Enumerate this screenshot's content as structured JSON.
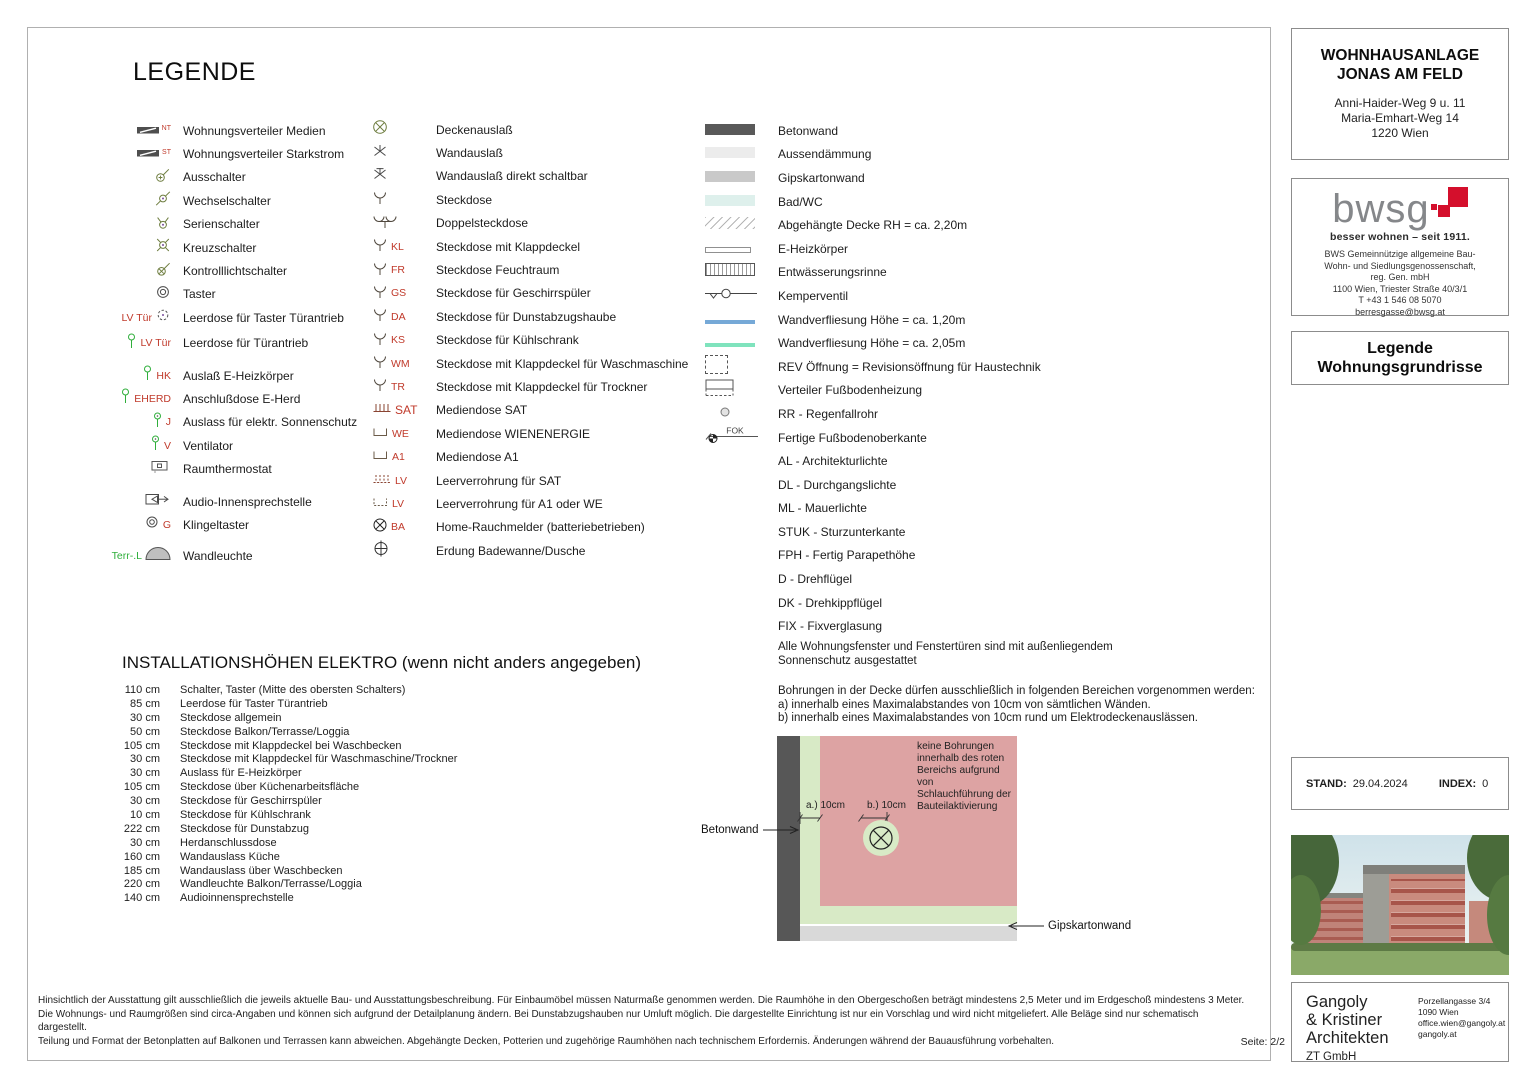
{
  "page": {
    "heading": "LEGENDE",
    "seite": "Seite: 2/2"
  },
  "colors": {
    "red": "#c03a2b",
    "green": "#2fae3b",
    "olive": "#6d7c3e",
    "betonwand": "#595959",
    "aussendaemmung": "#ececec",
    "gipskartonwand": "#c9c9c9",
    "bad_wc": "#def0ec",
    "tile_120": "#76a9d7",
    "tile_205": "#7fe3bd",
    "no_drill_zone": "#dda3a3",
    "allowed_zone": "#d8eac6",
    "brand_red": "#d40f2c"
  },
  "legend": {
    "col1": [
      {
        "icon": "verteiler-medien-icon",
        "tag": "NT",
        "tagClass": "tag-xs",
        "label": "Wohnungsverteiler Medien"
      },
      {
        "icon": "verteiler-starkstrom-icon",
        "tag": "ST",
        "tagClass": "tag-xs",
        "label": "Wohnungsverteiler Starkstrom"
      },
      {
        "icon": "ausschalter-icon",
        "label": "Ausschalter"
      },
      {
        "icon": "wechselschalter-icon",
        "label": "Wechselschalter"
      },
      {
        "icon": "serienschalter-icon",
        "label": "Serienschalter"
      },
      {
        "icon": "kreuzschalter-icon",
        "label": "Kreuzschalter"
      },
      {
        "icon": "kontrolllichtschalter-icon",
        "label": "Kontrolllichtschalter"
      },
      {
        "icon": "taster-icon",
        "label": "Taster"
      },
      {
        "icon": "leerdose-taster-icon",
        "pre": "LV Tür",
        "label": "Leerdose für Taster Türantrieb"
      },
      {
        "icon": "leerdose-pin-icon",
        "tag": "LV Tür",
        "label": "Leerdose für Türantrieb",
        "gap": 2
      },
      {
        "icon": "pin-icon",
        "tag": "HK",
        "label": "Auslaß E-Heizkörper",
        "gap": 9
      },
      {
        "icon": "pin-icon",
        "tag": "EHERD",
        "label": "Anschlußdose E-Herd"
      },
      {
        "icon": "pin-circle-icon",
        "tag": "J",
        "label": "Auslass für elektr. Sonnenschutz"
      },
      {
        "icon": "pin-circle-icon",
        "tag": "V",
        "label": "Ventilator"
      },
      {
        "icon": "raumthermostat-icon",
        "label": "Raumthermostat"
      },
      {
        "icon": "audio-sprechstelle-icon",
        "label": "Audio-Innensprechstelle",
        "gap": 9
      },
      {
        "icon": "klingeltaster-icon",
        "tag": "G",
        "label": "Klingeltaster"
      },
      {
        "icon": "wandleuchte-icon",
        "pre": "Terr-.L",
        "preClass": "green",
        "label": "Wandleuchte",
        "gap": 8
      }
    ],
    "col2": [
      {
        "icon": "deckenauslass-icon",
        "label": "Deckenauslaß"
      },
      {
        "icon": "wandauslass-icon",
        "label": "Wandauslaß"
      },
      {
        "icon": "wandauslass-schaltbar-icon",
        "label": "Wandauslaß direkt schaltbar"
      },
      {
        "icon": "steckdose-icon",
        "label": "Steckdose"
      },
      {
        "icon": "doppelsteckdose-icon",
        "label": "Doppelsteckdose"
      },
      {
        "icon": "steckdose-icon",
        "tag": "KL",
        "label": "Steckdose mit Klappdeckel"
      },
      {
        "icon": "steckdose-icon",
        "tag": "FR",
        "label": "Steckdose Feuchtraum"
      },
      {
        "icon": "steckdose-icon",
        "tag": "GS",
        "label": "Steckdose für Geschirrspüler"
      },
      {
        "icon": "steckdose-icon",
        "tag": "DA",
        "label": "Steckdose für Dunstabzugshaube"
      },
      {
        "icon": "steckdose-icon",
        "tag": "KS",
        "label": "Steckdose für Kühlschrank"
      },
      {
        "icon": "steckdose-icon",
        "tag": "WM",
        "label": "Steckdose mit Klappdeckel für Waschmaschine"
      },
      {
        "icon": "steckdose-icon",
        "tag": "TR",
        "label": "Steckdose mit Klappdeckel für Trockner"
      },
      {
        "icon": "mediendose-sat-icon",
        "tag": "SAT",
        "tagClass": "tag-lg",
        "label": "Mediendose SAT"
      },
      {
        "icon": "mediendose-icon",
        "tag": "WE",
        "label": "Mediendose WIENENERGIE"
      },
      {
        "icon": "mediendose-icon",
        "tag": "A1",
        "label": "Mediendose A1"
      },
      {
        "icon": "leerverrohrung-sat-icon",
        "tag": "LV",
        "label": "Leerverrohrung für SAT"
      },
      {
        "icon": "leerverrohrung-icon",
        "tag": "LV",
        "label": "Leerverrohrung für A1 oder WE"
      },
      {
        "icon": "rauchmelder-icon",
        "tag": "BA",
        "label": "Home-Rauchmelder (batteriebetrieben)"
      },
      {
        "icon": "erdung-icon",
        "label": "Erdung Badewanne/Dusche"
      }
    ],
    "col3": [
      {
        "icon": "swatch-icon",
        "color": "#595959",
        "label": "Betonwand"
      },
      {
        "icon": "swatch-icon",
        "color": "#ececec",
        "label": "Aussendämmung"
      },
      {
        "icon": "swatch-icon",
        "color": "#c9c9c9",
        "label": "Gipskartonwand"
      },
      {
        "icon": "swatch-icon",
        "color": "#def0ec",
        "label": "Bad/WC"
      },
      {
        "icon": "hatch-icon",
        "label": "Abgehängte Decke RH = ca. 2,20m"
      },
      {
        "icon": "heizkoerper-icon",
        "label": "E-Heizkörper"
      },
      {
        "icon": "rinne-icon",
        "label": "Entwässerungsrinne"
      },
      {
        "icon": "kemperventil-icon",
        "label": "Kemperventil"
      },
      {
        "icon": "tile-line-icon",
        "color": "#76a9d7",
        "label": "Wandverfliesung Höhe = ca. 1,20m"
      },
      {
        "icon": "tile-line-icon",
        "color": "#7fe3bd",
        "label": "Wandverfliesung Höhe = ca. 2,05m"
      },
      {
        "icon": "rev-icon",
        "label": "REV Öffnung = Revisionsöffnung für Haustechnik"
      },
      {
        "icon": "fbh-verteiler-icon",
        "label": "Verteiler Fußbodenheizung"
      },
      {
        "icon": "regenfallrohr-icon",
        "label": "RR - Regenfallrohr"
      },
      {
        "icon": "fok-icon",
        "sym_text": "FOK",
        "label": "Fertige Fußbodenoberkante"
      },
      {
        "icon": "",
        "label": "AL - Architekturlichte"
      },
      {
        "icon": "",
        "label": "DL - Durchgangslichte"
      },
      {
        "icon": "",
        "label": "ML - Mauerlichte"
      },
      {
        "icon": "",
        "label": "STUK - Sturzunterkante"
      },
      {
        "icon": "",
        "label": "FPH - Fertig Parapethöhe"
      },
      {
        "icon": "",
        "label": "D - Drehflügel"
      },
      {
        "icon": "",
        "label": "DK - Drehkippflügel"
      },
      {
        "icon": "",
        "label": "FIX - Fixverglasung"
      }
    ]
  },
  "notes": {
    "s1": "Alle Wohnungsfenster und Fenstertüren sind mit außenliegendem",
    "s2": "Sonnenschutz ausgestattet",
    "b1": "Bohrungen in der Decke dürfen ausschließlich in folgenden Bereichen vorgenommen werden:",
    "b2": "a) innerhalb eines Maximalabstandes von 10cm von sämtlichen Wänden.",
    "b3": "b) innerhalb eines Maximalabstandes von 10cm rund um Elektrodeckenauslässen."
  },
  "install": {
    "heading": "INSTALLATIONSHÖHEN ELEKTRO (wenn nicht anders angegeben)",
    "rows": [
      {
        "h": "110 cm",
        "label": "Schalter, Taster (Mitte des obersten Schalters)"
      },
      {
        "h": "85 cm",
        "label": "Leerdose für Taster Türantrieb"
      },
      {
        "h": "30 cm",
        "label": "Steckdose allgemein"
      },
      {
        "h": "50 cm",
        "label": "Steckdose Balkon/Terrasse/Loggia"
      },
      {
        "h": "105 cm",
        "label": "Steckdose mit Klappdeckel bei Waschbecken"
      },
      {
        "h": "30 cm",
        "label": "Steckdose mit Klappdeckel für Waschmaschine/Trockner"
      },
      {
        "h": "30 cm",
        "label": "Auslass für E-Heizkörper"
      },
      {
        "h": "105 cm",
        "label": "Steckdose über Küchenarbeitsfläche"
      },
      {
        "h": "30 cm",
        "label": "Steckdose für Geschirrspüler"
      },
      {
        "h": "10 cm",
        "label": "Steckdose für Kühlschrank"
      },
      {
        "h": "222 cm",
        "label": "Steckdose für Dunstabzug"
      },
      {
        "h": "30 cm",
        "label": "Herdanschlussdose"
      },
      {
        "h": "160 cm",
        "label": "Wandauslass Küche"
      },
      {
        "h": "185 cm",
        "label": "Wandauslass über Waschbecken"
      },
      {
        "h": "220 cm",
        "label": "Wandleuchte Balkon/Terrasse/Loggia"
      },
      {
        "h": "140 cm",
        "label": "Audioinnensprechstelle"
      }
    ]
  },
  "drawing": {
    "note": "keine Bohrungen\ninnerhalb des roten\nBereichs aufgrund von\nSchlauchführung der\nBauteilaktivierung",
    "dim_a": "a.) 10cm",
    "dim_b": "b.) 10cm",
    "label_beton": "Betonwand",
    "label_gips": "Gipskartonwand"
  },
  "project": {
    "title1": "WOHNHAUSANLAGE",
    "title2": "JONAS AM FELD",
    "addr1": "Anni-Haider-Weg 9 u. 11",
    "addr2": "Maria-Emhart-Weg 14",
    "addr3": "1220 Wien"
  },
  "bwsg": {
    "logo_text": "bwsg",
    "tagline": "besser wohnen – seit 1911.",
    "lines": [
      "BWS Gemeinnützige allgemeine Bau-",
      "Wohn- und Siedlungsgenossenschaft,",
      "reg. Gen. mbH",
      "1100 Wien, Triester Straße 40/3/1",
      "T +43 1 546 08 5070",
      "berresgasse@bwsg.at"
    ]
  },
  "legende_box": {
    "line1": "Legende",
    "line2": "Wohnungsgrundrisse"
  },
  "stand": {
    "label": "STAND:",
    "value": "29.04.2024",
    "index_label": "INDEX:",
    "index_value": "0"
  },
  "architect": {
    "name1": "Gangoly",
    "name2": "& Kristiner",
    "name3": "Architekten",
    "sub": "ZT GmbH",
    "c1": "Porzellangasse 3/4",
    "c2": "1090 Wien",
    "c3": "office.wien@gangoly.at",
    "c4": "gangoly.at"
  },
  "footer": {
    "line1": "Hinsichtlich der Ausstattung gilt ausschließlich die jeweils aktuelle Bau- und Ausstattungsbeschreibung. Für Einbaumöbel müssen Naturmaße genommen werden. Die Raumhöhe in den Obergeschoßen beträgt mindestens 2,5 Meter und im Erdgeschoß mindestens 3 Meter.",
    "line2": "Die Wohnungs- und Raumgrößen sind circa-Angaben und können sich aufgrund der Detailplanung ändern. Bei Dunstabzugshauben nur Umluft möglich. Die dargestellte Einrichtung ist nur ein Vorschlag und wird nicht mitgeliefert. Alle Beläge sind nur schematisch dargestellt.",
    "line3": "Teilung und Format der Betonplatten auf Balkonen und Terrassen kann abweichen. Abgehängte Decken, Potterien und zugehörige Raumhöhen nach technischem Erfordernis. Änderungen während der Bauausführung vorbehalten."
  }
}
